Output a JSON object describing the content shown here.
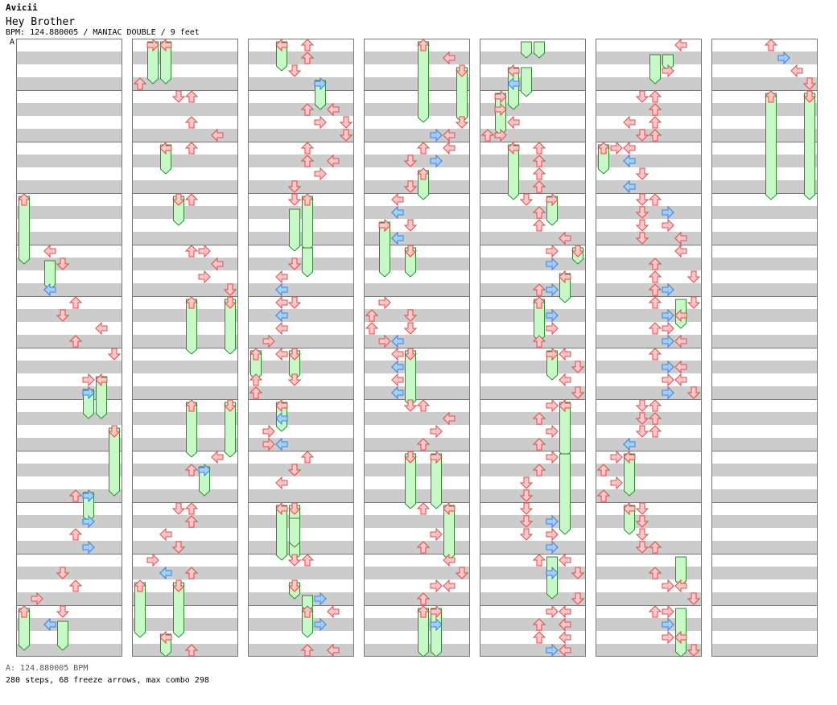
{
  "header": {
    "artist": "Avicii",
    "title": "Hey Brother",
    "meta": "BPM: 124.880005 / MANIAC DOUBLE / 9 feet",
    "bpm_marker": "A"
  },
  "footer": {
    "bpm_legend": "A: 124.880005 BPM",
    "stats": "280 steps, 68 freeze arrows, max combo 298"
  },
  "colors": {
    "stripe": "#cccccc",
    "arrow_red": "#ffc8c8",
    "arrow_red_edge": "#e04848",
    "arrow_blue": "#a0d0ff",
    "arrow_blue_edge": "#3a80d8",
    "freeze_fill": "#c8f8c8",
    "freeze_edge": "#2e8a2e"
  },
  "chart_data": {
    "type": "step-chart",
    "columns": 7,
    "lanes": 8,
    "measures_per_column": 12,
    "rows_per_measure": 16,
    "freezes": [
      [
        0,
        0,
        12,
        17
      ],
      [
        0,
        2,
        17,
        19
      ],
      [
        0,
        5,
        27,
        29
      ],
      [
        0,
        6,
        26,
        29
      ],
      [
        0,
        7,
        30,
        35
      ],
      [
        0,
        5,
        35,
        37
      ],
      [
        0,
        0,
        44,
        47
      ],
      [
        0,
        3,
        45,
        47
      ],
      [
        1,
        1,
        0,
        3
      ],
      [
        1,
        2,
        0,
        3
      ],
      [
        1,
        2,
        8,
        10
      ],
      [
        1,
        3,
        12,
        14
      ],
      [
        1,
        4,
        20,
        24
      ],
      [
        1,
        7,
        20,
        24
      ],
      [
        1,
        4,
        28,
        32
      ],
      [
        1,
        7,
        28,
        32
      ],
      [
        1,
        5,
        33,
        35
      ],
      [
        1,
        0,
        42,
        46
      ],
      [
        1,
        3,
        42,
        46
      ],
      [
        1,
        2,
        46,
        48
      ],
      [
        2,
        2,
        0,
        2
      ],
      [
        2,
        5,
        3,
        5
      ],
      [
        2,
        3,
        13,
        16
      ],
      [
        2,
        4,
        12,
        16
      ],
      [
        2,
        4,
        16,
        18
      ],
      [
        2,
        0,
        24,
        26
      ],
      [
        2,
        3,
        24,
        26
      ],
      [
        2,
        2,
        28,
        30
      ],
      [
        2,
        2,
        36,
        40
      ],
      [
        2,
        3,
        36,
        40
      ],
      [
        2,
        3,
        42,
        43
      ],
      [
        2,
        4,
        44,
        46
      ],
      [
        2,
        4,
        43,
        44
      ],
      [
        2,
        3,
        37,
        39
      ],
      [
        3,
        4,
        0,
        6
      ],
      [
        3,
        7,
        2,
        6
      ],
      [
        3,
        4,
        10,
        12
      ],
      [
        3,
        1,
        14,
        18
      ],
      [
        3,
        3,
        16,
        18
      ],
      [
        3,
        3,
        24,
        26
      ],
      [
        3,
        3,
        32,
        36
      ],
      [
        3,
        5,
        32,
        36
      ],
      [
        3,
        6,
        36,
        40
      ],
      [
        3,
        4,
        44,
        48
      ],
      [
        3,
        5,
        44,
        48
      ],
      [
        3,
        3,
        24,
        28
      ],
      [
        4,
        3,
        2,
        4
      ],
      [
        4,
        2,
        2,
        5
      ],
      [
        4,
        1,
        4,
        7
      ],
      [
        4,
        2,
        8,
        12
      ],
      [
        4,
        5,
        12,
        14
      ],
      [
        4,
        7,
        16,
        17
      ],
      [
        4,
        6,
        18,
        20
      ],
      [
        4,
        4,
        20,
        23
      ],
      [
        4,
        5,
        24,
        26
      ],
      [
        4,
        6,
        28,
        32
      ],
      [
        4,
        5,
        40,
        43
      ],
      [
        4,
        6,
        32,
        38
      ],
      [
        4,
        3,
        0,
        1
      ],
      [
        4,
        4,
        0,
        1
      ],
      [
        5,
        4,
        1,
        3
      ],
      [
        5,
        5,
        1,
        2
      ],
      [
        5,
        0,
        8,
        10
      ],
      [
        5,
        6,
        20,
        22
      ],
      [
        5,
        6,
        40,
        42
      ],
      [
        5,
        6,
        44,
        48
      ],
      [
        5,
        2,
        32,
        35
      ],
      [
        5,
        2,
        36,
        38
      ],
      [
        6,
        4,
        4,
        12
      ],
      [
        6,
        7,
        4,
        12
      ]
    ],
    "arrows": [
      [
        0,
        0,
        12
      ],
      [
        0,
        3,
        17
      ],
      [
        0,
        2,
        16
      ],
      [
        0,
        2,
        19
      ],
      [
        0,
        4,
        20
      ],
      [
        0,
        3,
        21
      ],
      [
        0,
        4,
        23
      ],
      [
        0,
        6,
        22
      ],
      [
        0,
        7,
        24
      ],
      [
        0,
        5,
        26
      ],
      [
        0,
        6,
        26
      ],
      [
        0,
        5,
        27
      ],
      [
        0,
        7,
        30
      ],
      [
        0,
        4,
        35
      ],
      [
        0,
        5,
        35
      ],
      [
        0,
        5,
        37
      ],
      [
        0,
        4,
        38
      ],
      [
        0,
        5,
        39
      ],
      [
        0,
        3,
        41
      ],
      [
        0,
        4,
        42
      ],
      [
        0,
        1,
        43
      ],
      [
        0,
        2,
        45
      ],
      [
        0,
        0,
        44
      ],
      [
        0,
        3,
        44
      ],
      [
        1,
        1,
        0
      ],
      [
        1,
        2,
        0
      ],
      [
        1,
        0,
        3
      ],
      [
        1,
        3,
        4
      ],
      [
        1,
        4,
        4
      ],
      [
        1,
        4,
        6
      ],
      [
        1,
        6,
        7
      ],
      [
        1,
        4,
        8
      ],
      [
        1,
        2,
        8
      ],
      [
        1,
        4,
        12
      ],
      [
        1,
        3,
        12
      ],
      [
        1,
        5,
        16
      ],
      [
        1,
        4,
        16
      ],
      [
        1,
        6,
        17
      ],
      [
        1,
        5,
        18
      ],
      [
        1,
        7,
        19
      ],
      [
        1,
        4,
        20
      ],
      [
        1,
        7,
        20
      ],
      [
        1,
        4,
        28
      ],
      [
        1,
        7,
        28
      ],
      [
        1,
        6,
        32
      ],
      [
        1,
        4,
        33
      ],
      [
        1,
        5,
        33
      ],
      [
        1,
        3,
        36
      ],
      [
        1,
        4,
        36
      ],
      [
        1,
        4,
        37
      ],
      [
        1,
        2,
        38
      ],
      [
        1,
        3,
        39
      ],
      [
        1,
        1,
        40
      ],
      [
        1,
        2,
        41
      ],
      [
        1,
        4,
        41
      ],
      [
        1,
        0,
        42
      ],
      [
        1,
        3,
        42
      ],
      [
        1,
        2,
        46
      ],
      [
        1,
        4,
        47
      ],
      [
        2,
        2,
        0
      ],
      [
        2,
        4,
        0
      ],
      [
        2,
        4,
        1
      ],
      [
        2,
        3,
        2
      ],
      [
        2,
        5,
        3
      ],
      [
        2,
        4,
        5
      ],
      [
        2,
        6,
        5
      ],
      [
        2,
        5,
        6
      ],
      [
        2,
        7,
        6
      ],
      [
        2,
        7,
        7
      ],
      [
        2,
        4,
        8
      ],
      [
        2,
        4,
        9
      ],
      [
        2,
        6,
        9
      ],
      [
        2,
        5,
        10
      ],
      [
        2,
        3,
        11
      ],
      [
        2,
        3,
        12
      ],
      [
        2,
        4,
        12
      ],
      [
        2,
        3,
        17
      ],
      [
        2,
        2,
        18
      ],
      [
        2,
        2,
        19
      ],
      [
        2,
        2,
        20
      ],
      [
        2,
        2,
        21
      ],
      [
        2,
        3,
        20
      ],
      [
        2,
        2,
        22
      ],
      [
        2,
        1,
        23
      ],
      [
        2,
        2,
        24
      ],
      [
        2,
        3,
        24
      ],
      [
        2,
        0,
        24
      ],
      [
        2,
        0,
        26
      ],
      [
        2,
        3,
        26
      ],
      [
        2,
        0,
        27
      ],
      [
        2,
        2,
        28
      ],
      [
        2,
        2,
        29
      ],
      [
        2,
        1,
        30
      ],
      [
        2,
        1,
        31
      ],
      [
        2,
        2,
        31
      ],
      [
        2,
        4,
        32
      ],
      [
        2,
        3,
        33
      ],
      [
        2,
        2,
        34
      ],
      [
        2,
        2,
        36
      ],
      [
        2,
        3,
        36
      ],
      [
        2,
        3,
        40
      ],
      [
        2,
        4,
        40
      ],
      [
        2,
        3,
        42
      ],
      [
        2,
        5,
        43
      ],
      [
        2,
        4,
        44
      ],
      [
        2,
        6,
        44
      ],
      [
        2,
        5,
        45
      ],
      [
        2,
        4,
        47
      ],
      [
        2,
        6,
        47
      ],
      [
        3,
        4,
        0
      ],
      [
        3,
        6,
        1
      ],
      [
        3,
        7,
        2
      ],
      [
        3,
        7,
        6
      ],
      [
        3,
        6,
        7
      ],
      [
        3,
        5,
        7
      ],
      [
        3,
        6,
        8
      ],
      [
        3,
        4,
        8
      ],
      [
        3,
        5,
        9
      ],
      [
        3,
        3,
        9
      ],
      [
        3,
        4,
        10
      ],
      [
        3,
        3,
        11
      ],
      [
        3,
        2,
        12
      ],
      [
        3,
        2,
        13
      ],
      [
        3,
        3,
        14
      ],
      [
        3,
        1,
        14
      ],
      [
        3,
        2,
        15
      ],
      [
        3,
        3,
        16
      ],
      [
        3,
        1,
        20
      ],
      [
        3,
        0,
        21
      ],
      [
        3,
        3,
        21
      ],
      [
        3,
        0,
        22
      ],
      [
        3,
        3,
        22
      ],
      [
        3,
        1,
        23
      ],
      [
        3,
        2,
        23
      ],
      [
        3,
        3,
        24
      ],
      [
        3,
        2,
        24
      ],
      [
        3,
        2,
        25
      ],
      [
        3,
        2,
        26
      ],
      [
        3,
        2,
        27
      ],
      [
        3,
        4,
        28
      ],
      [
        3,
        3,
        28
      ],
      [
        3,
        6,
        29
      ],
      [
        3,
        5,
        30
      ],
      [
        3,
        4,
        31
      ],
      [
        3,
        5,
        32
      ],
      [
        3,
        3,
        32
      ],
      [
        3,
        4,
        36
      ],
      [
        3,
        6,
        36
      ],
      [
        3,
        5,
        38
      ],
      [
        3,
        4,
        39
      ],
      [
        3,
        6,
        40
      ],
      [
        3,
        7,
        41
      ],
      [
        3,
        5,
        42
      ],
      [
        3,
        6,
        42
      ],
      [
        3,
        4,
        43
      ],
      [
        3,
        5,
        44
      ],
      [
        3,
        4,
        44
      ],
      [
        3,
        5,
        45
      ],
      [
        4,
        2,
        2
      ],
      [
        4,
        1,
        4
      ],
      [
        4,
        2,
        3
      ],
      [
        4,
        1,
        5
      ],
      [
        4,
        2,
        6
      ],
      [
        4,
        0,
        7
      ],
      [
        4,
        1,
        7
      ],
      [
        4,
        2,
        8
      ],
      [
        4,
        4,
        8
      ],
      [
        4,
        4,
        9
      ],
      [
        4,
        4,
        10
      ],
      [
        4,
        4,
        11
      ],
      [
        4,
        3,
        12
      ],
      [
        4,
        4,
        13
      ],
      [
        4,
        4,
        14
      ],
      [
        4,
        5,
        12
      ],
      [
        4,
        6,
        15
      ],
      [
        4,
        7,
        16
      ],
      [
        4,
        5,
        16
      ],
      [
        4,
        5,
        17
      ],
      [
        4,
        6,
        18
      ],
      [
        4,
        5,
        19
      ],
      [
        4,
        4,
        19
      ],
      [
        4,
        4,
        20
      ],
      [
        4,
        5,
        21
      ],
      [
        4,
        5,
        22
      ],
      [
        4,
        4,
        23
      ],
      [
        4,
        5,
        24
      ],
      [
        4,
        6,
        24
      ],
      [
        4,
        7,
        25
      ],
      [
        4,
        6,
        26
      ],
      [
        4,
        7,
        27
      ],
      [
        4,
        5,
        28
      ],
      [
        4,
        4,
        29
      ],
      [
        4,
        6,
        28
      ],
      [
        4,
        5,
        30
      ],
      [
        4,
        4,
        31
      ],
      [
        4,
        5,
        32
      ],
      [
        4,
        4,
        33
      ],
      [
        4,
        3,
        34
      ],
      [
        4,
        3,
        35
      ],
      [
        4,
        3,
        36
      ],
      [
        4,
        3,
        37
      ],
      [
        4,
        3,
        38
      ],
      [
        4,
        5,
        37
      ],
      [
        4,
        5,
        38
      ],
      [
        4,
        5,
        39
      ],
      [
        4,
        4,
        40
      ],
      [
        4,
        6,
        40
      ],
      [
        4,
        5,
        41
      ],
      [
        4,
        7,
        41
      ],
      [
        4,
        7,
        43
      ],
      [
        4,
        5,
        44
      ],
      [
        4,
        6,
        44
      ],
      [
        4,
        4,
        45
      ],
      [
        4,
        6,
        45
      ],
      [
        4,
        4,
        46
      ],
      [
        4,
        6,
        46
      ],
      [
        4,
        5,
        47
      ],
      [
        4,
        6,
        47
      ],
      [
        4,
        5,
        48
      ],
      [
        5,
        6,
        0
      ],
      [
        5,
        5,
        2
      ],
      [
        5,
        4,
        4
      ],
      [
        5,
        3,
        4
      ],
      [
        5,
        4,
        5
      ],
      [
        5,
        4,
        6
      ],
      [
        5,
        2,
        6
      ],
      [
        5,
        4,
        7
      ],
      [
        5,
        3,
        7
      ],
      [
        5,
        2,
        8
      ],
      [
        5,
        1,
        8
      ],
      [
        5,
        0,
        8
      ],
      [
        5,
        2,
        9
      ],
      [
        5,
        3,
        10
      ],
      [
        5,
        2,
        11
      ],
      [
        5,
        4,
        12
      ],
      [
        5,
        3,
        12
      ],
      [
        5,
        3,
        13
      ],
      [
        5,
        5,
        13
      ],
      [
        5,
        3,
        14
      ],
      [
        5,
        5,
        14
      ],
      [
        5,
        6,
        15
      ],
      [
        5,
        3,
        15
      ],
      [
        5,
        6,
        16
      ],
      [
        5,
        4,
        17
      ],
      [
        5,
        4,
        18
      ],
      [
        5,
        7,
        18
      ],
      [
        5,
        4,
        19
      ],
      [
        5,
        5,
        19
      ],
      [
        5,
        4,
        20
      ],
      [
        5,
        7,
        20
      ],
      [
        5,
        5,
        21
      ],
      [
        5,
        6,
        21
      ],
      [
        5,
        4,
        22
      ],
      [
        5,
        5,
        22
      ],
      [
        5,
        6,
        23
      ],
      [
        5,
        5,
        23
      ],
      [
        5,
        4,
        24
      ],
      [
        5,
        5,
        25
      ],
      [
        5,
        6,
        25
      ],
      [
        5,
        5,
        26
      ],
      [
        5,
        6,
        26
      ],
      [
        5,
        7,
        27
      ],
      [
        5,
        5,
        27
      ],
      [
        5,
        3,
        28
      ],
      [
        5,
        4,
        28
      ],
      [
        5,
        3,
        29
      ],
      [
        5,
        4,
        29
      ],
      [
        5,
        3,
        30
      ],
      [
        5,
        4,
        30
      ],
      [
        5,
        2,
        31
      ],
      [
        5,
        1,
        32
      ],
      [
        5,
        2,
        32
      ],
      [
        5,
        0,
        33
      ],
      [
        5,
        1,
        34
      ],
      [
        5,
        0,
        35
      ],
      [
        5,
        3,
        36
      ],
      [
        5,
        2,
        36
      ],
      [
        5,
        3,
        37
      ],
      [
        5,
        3,
        38
      ],
      [
        5,
        3,
        39
      ],
      [
        5,
        4,
        39
      ],
      [
        5,
        4,
        41
      ],
      [
        5,
        5,
        42
      ],
      [
        5,
        6,
        42
      ],
      [
        5,
        7,
        43
      ],
      [
        5,
        4,
        44
      ],
      [
        5,
        5,
        44
      ],
      [
        5,
        5,
        45
      ],
      [
        5,
        5,
        46
      ],
      [
        5,
        6,
        46
      ],
      [
        5,
        7,
        47
      ],
      [
        6,
        4,
        0
      ],
      [
        6,
        5,
        1
      ],
      [
        6,
        6,
        2
      ],
      [
        6,
        7,
        3
      ],
      [
        6,
        4,
        4
      ],
      [
        6,
        7,
        4
      ]
    ],
    "blue_lanes": [
      2,
      5
    ]
  }
}
